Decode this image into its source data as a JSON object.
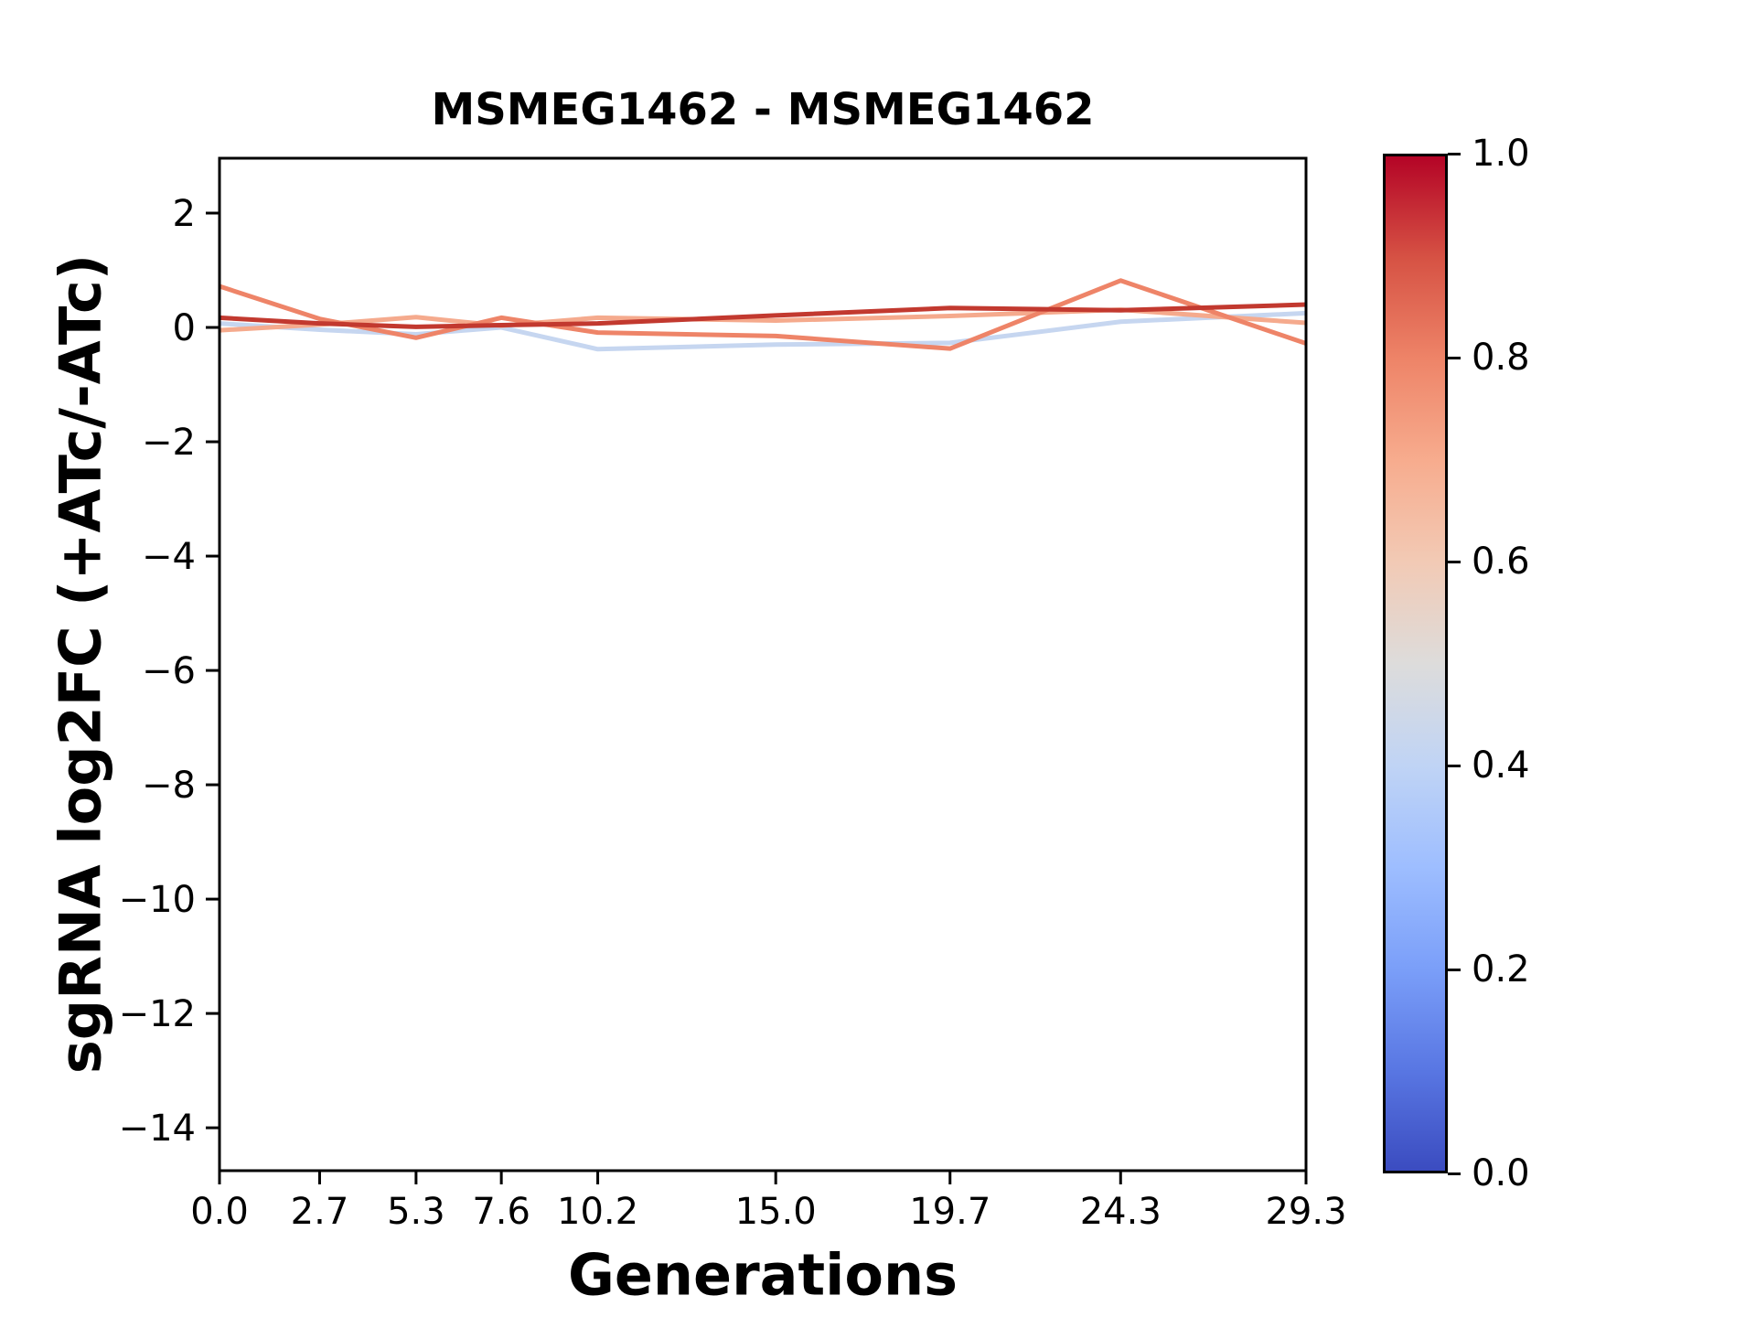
{
  "chart_data": {
    "type": "line",
    "title": "MSMEG1462 - MSMEG1462",
    "xlabel": "Generations",
    "ylabel": "sgRNA log2FC (+ATc/-ATc)",
    "x": [
      0.0,
      2.7,
      5.3,
      7.6,
      10.2,
      15.0,
      19.7,
      24.3,
      29.3
    ],
    "xtick_labels": [
      "0.0",
      "2.7",
      "5.3",
      "7.6",
      "10.2",
      "15.0",
      "19.7",
      "24.3",
      "29.3"
    ],
    "ytick_values": [
      2,
      0,
      -2,
      -4,
      -6,
      -8,
      -10,
      -12,
      -14
    ],
    "ytick_labels": [
      "2",
      "0",
      "−2",
      "−4",
      "−6",
      "−8",
      "−10",
      "−12",
      "−14"
    ],
    "xlim": [
      0.0,
      29.3
    ],
    "ylim": [
      -14.75,
      2.96
    ],
    "grid": false,
    "legend": "none (colorbar encodes line color value)",
    "axis_color": "#000000",
    "background_color": "#ffffff",
    "series": [
      {
        "name": "sgrna-line-1",
        "color": "#c6d6f0",
        "colorbar_value": 0.42,
        "values": [
          0.07,
          -0.04,
          -0.12,
          0.0,
          -0.38,
          -0.3,
          -0.27,
          0.1,
          0.25
        ]
      },
      {
        "name": "sgrna-line-2",
        "color": "#f5aa8d",
        "colorbar_value": 0.62,
        "values": [
          -0.05,
          0.05,
          0.18,
          0.03,
          0.17,
          0.12,
          0.2,
          0.31,
          0.08
        ]
      },
      {
        "name": "sgrna-line-3",
        "color": "#ee8468",
        "colorbar_value": 0.78,
        "values": [
          0.72,
          0.15,
          -0.18,
          0.17,
          -0.09,
          -0.15,
          -0.37,
          0.82,
          -0.28
        ]
      },
      {
        "name": "sgrna-line-4",
        "color": "#c2392f",
        "colorbar_value": 1.0,
        "values": [
          0.17,
          0.07,
          0.01,
          0.04,
          0.07,
          0.21,
          0.34,
          0.3,
          0.4
        ]
      }
    ],
    "colorbar": {
      "colormap": "coolwarm",
      "range": [
        0.0,
        1.0
      ],
      "tick_labels": [
        "1.0",
        "0.8",
        "0.6",
        "0.4",
        "0.2",
        "0.0"
      ],
      "tick_values": [
        1.0,
        0.8,
        0.6,
        0.4,
        0.2,
        0.0
      ],
      "gradient_stops_bottom_to_top": [
        "#3b4cc0",
        "#5977e3",
        "#7b9ff9",
        "#9ebeff",
        "#c0d4f5",
        "#dddcdb",
        "#f2cab5",
        "#f7ac8e",
        "#ee8468",
        "#d65244",
        "#b40426"
      ]
    }
  }
}
